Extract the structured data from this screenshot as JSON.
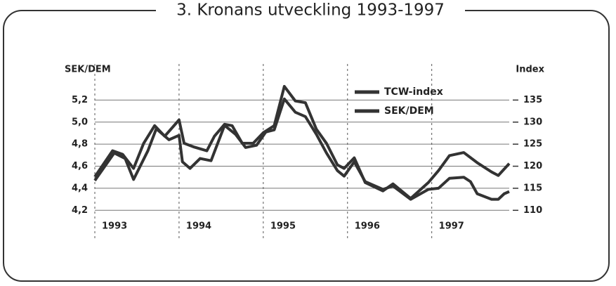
{
  "chart_data": {
    "type": "line",
    "title": "3. Kronans utveckling 1993-1997",
    "ylabel": "SEK/DEM",
    "y2label": "Index",
    "xlim": [
      1993,
      1997.92
    ],
    "xticks": [
      1993,
      1994,
      1995,
      1996,
      1997
    ],
    "ylim": [
      4.1,
      5.4
    ],
    "yticks": [
      {
        "value": 4.2,
        "label": "4,2"
      },
      {
        "value": 4.4,
        "label": "4,4"
      },
      {
        "value": 4.6,
        "label": "4,6"
      },
      {
        "value": 4.8,
        "label": "4,8"
      },
      {
        "value": 5.0,
        "label": "5,0"
      },
      {
        "value": 5.2,
        "label": "5,2"
      }
    ],
    "y2lim": [
      107.5,
      140
    ],
    "y2ticks": [
      110,
      115,
      120,
      125,
      130,
      135
    ],
    "grid": true,
    "legend": "top",
    "series": [
      {
        "name": "TCW-index",
        "color": "#333333",
        "axis": "y2",
        "x": [
          1993.0,
          1993.21,
          1993.33,
          1993.46,
          1993.58,
          1993.71,
          1993.83,
          1994.0,
          1994.06,
          1994.17,
          1994.33,
          1994.42,
          1994.54,
          1994.63,
          1994.75,
          1994.88,
          1995.0,
          1995.13,
          1995.25,
          1995.38,
          1995.5,
          1995.63,
          1995.75,
          1995.88,
          1995.96,
          1996.08,
          1996.21,
          1996.42,
          1996.54,
          1996.75,
          1996.96,
          1997.08,
          1997.21,
          1997.38,
          1997.54,
          1997.71,
          1997.79,
          1997.92
        ],
        "values": [
          117.6,
          123.5,
          122.7,
          119.5,
          125.2,
          129.2,
          126.8,
          130.5,
          125.2,
          124.4,
          123.5,
          126.8,
          129.5,
          129.2,
          125.2,
          125.2,
          127.6,
          129.2,
          138.1,
          134.8,
          134.4,
          128.4,
          125.2,
          120.3,
          119.5,
          121.9,
          116.3,
          114.4,
          116.0,
          112.7,
          116.3,
          119.0,
          122.4,
          123.1,
          120.8,
          118.7,
          117.9,
          120.6
        ]
      },
      {
        "name": "SEK/DEM",
        "color": "#333333",
        "x": [
          1993.0,
          1993.23,
          1993.36,
          1993.46,
          1993.63,
          1993.73,
          1993.88,
          1994.0,
          1994.04,
          1994.13,
          1994.25,
          1994.38,
          1994.54,
          1994.67,
          1994.79,
          1994.92,
          1995.03,
          1995.13,
          1995.25,
          1995.38,
          1995.5,
          1995.63,
          1995.75,
          1995.88,
          1995.96,
          1996.08,
          1996.21,
          1996.42,
          1996.54,
          1996.75,
          1996.96,
          1997.08,
          1997.21,
          1997.38,
          1997.46,
          1997.54,
          1997.71,
          1997.79,
          1997.86,
          1997.92
        ],
        "values": [
          4.47,
          4.72,
          4.67,
          4.48,
          4.74,
          4.94,
          4.84,
          4.88,
          4.64,
          4.58,
          4.67,
          4.65,
          4.97,
          4.89,
          4.77,
          4.79,
          4.91,
          4.93,
          5.21,
          5.09,
          5.05,
          4.89,
          4.72,
          4.56,
          4.51,
          4.64,
          4.46,
          4.39,
          4.42,
          4.3,
          4.39,
          4.4,
          4.49,
          4.5,
          4.46,
          4.35,
          4.3,
          4.3,
          4.35,
          4.37
        ]
      }
    ]
  }
}
